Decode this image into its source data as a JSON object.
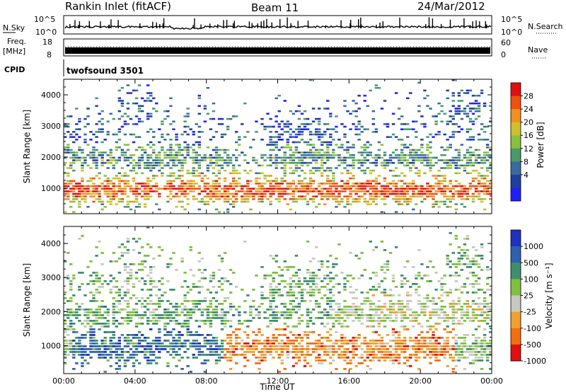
{
  "header": {
    "station": "Rankin Inlet (fitACF)",
    "beam": "Beam 11",
    "date": "24/Mar/2012"
  },
  "strips": {
    "nsky_label": "N.Sky",
    "nsky_ticks": [
      "10^5",
      "10^0"
    ],
    "nsearch_label": "N.Search",
    "nsearch_ticks": [
      "10^5",
      "10^0"
    ],
    "freq_label": "Freq.",
    "freq_unit": "[MHz]",
    "freq_ticks": [
      "18",
      "8"
    ],
    "nave_label": "Nave",
    "nave_ticks": [
      "60",
      "0"
    ],
    "cpid_label": "CPID",
    "cpid_value": "twofsound 3501"
  },
  "chart_data": [
    {
      "type": "heatmap",
      "title": "",
      "xlabel": "",
      "ylabel": "Slant Range [km]",
      "xlim": [
        "00:00",
        "24:00"
      ],
      "ylim": [
        180,
        4500
      ],
      "yticks": [
        "1000",
        "2000",
        "3000",
        "4000"
      ],
      "colorbar_label": "Power [dB]",
      "colorbar_ticks": [
        "28",
        "24",
        "20",
        "16",
        "12",
        "8",
        "4"
      ],
      "colors": [
        "#2020ff",
        "#2040a0",
        "#3a6aa0",
        "#4a9a6a",
        "#8ac040",
        "#d0c030",
        "#f09020",
        "#f05010",
        "#e01010"
      ]
    },
    {
      "type": "heatmap",
      "title": "",
      "xlabel": "Time UT",
      "ylabel": "Slant Range [km]",
      "xlim": [
        "00:00",
        "24:00"
      ],
      "ylim": [
        180,
        4500
      ],
      "xticks": [
        "00:00",
        "04:00",
        "08:00",
        "12:00",
        "16:00",
        "20:00",
        "00:00"
      ],
      "yticks": [
        "1000",
        "2000",
        "3000",
        "4000"
      ],
      "colorbar_label": "Velocity [m s⁻¹]",
      "colorbar_ticks": [
        "1000",
        "500",
        "100",
        "25",
        "-25",
        "-100",
        "-500",
        "-1000"
      ],
      "colors": [
        "#2030c0",
        "#3060b0",
        "#3f8f6f",
        "#80c040",
        "#c8c8c0",
        "#f0a030",
        "#f07010",
        "#e01010"
      ]
    }
  ]
}
